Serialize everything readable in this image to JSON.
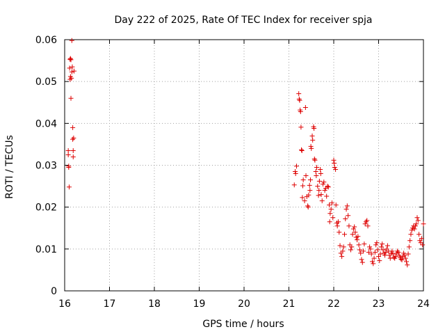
{
  "chart_data": {
    "type": "scatter",
    "title": "Day 222 of 2025, Rate Of TEC Index for receiver spja",
    "xlabel": "GPS time / hours",
    "ylabel": "ROTI / TECUs",
    "xlim": [
      16,
      24
    ],
    "ylim": [
      0,
      0.06
    ],
    "x_ticks": [
      "16",
      "17",
      "18",
      "19",
      "20",
      "21",
      "22",
      "23",
      "24"
    ],
    "y_ticks": [
      "0",
      "0.01",
      "0.02",
      "0.03",
      "0.04",
      "0.05",
      "0.06"
    ],
    "grid": true,
    "marker": "plus",
    "color": "#dd0000",
    "series": [
      {
        "name": "ROTI",
        "points": [
          [
            16.08,
            0.0335
          ],
          [
            16.08,
            0.0325
          ],
          [
            16.09,
            0.0298
          ],
          [
            16.09,
            0.0295
          ],
          [
            16.1,
            0.0248
          ],
          [
            16.11,
            0.0532
          ],
          [
            16.12,
            0.0553
          ],
          [
            16.12,
            0.0505
          ],
          [
            16.13,
            0.0555
          ],
          [
            16.13,
            0.0512
          ],
          [
            16.14,
            0.046
          ],
          [
            16.14,
            0.0552
          ],
          [
            16.15,
            0.0508
          ],
          [
            16.16,
            0.0523
          ],
          [
            16.16,
            0.0598
          ],
          [
            16.17,
            0.0535
          ],
          [
            16.18,
            0.039
          ],
          [
            16.18,
            0.0362
          ],
          [
            16.19,
            0.032
          ],
          [
            16.19,
            0.0335
          ],
          [
            16.2,
            0.0365
          ],
          [
            16.21,
            0.0525
          ],
          [
            21.12,
            0.0253
          ],
          [
            21.14,
            0.0285
          ],
          [
            21.15,
            0.028
          ],
          [
            21.17,
            0.0298
          ],
          [
            21.22,
            0.0471
          ],
          [
            21.23,
            0.0458
          ],
          [
            21.24,
            0.0455
          ],
          [
            21.25,
            0.0432
          ],
          [
            21.26,
            0.0428
          ],
          [
            21.27,
            0.0391
          ],
          [
            21.28,
            0.0337
          ],
          [
            21.29,
            0.0335
          ],
          [
            21.3,
            0.0223
          ],
          [
            21.31,
            0.0251
          ],
          [
            21.32,
            0.0265
          ],
          [
            21.35,
            0.0215
          ],
          [
            21.37,
            0.0438
          ],
          [
            21.38,
            0.0275
          ],
          [
            21.4,
            0.0225
          ],
          [
            21.42,
            0.0203
          ],
          [
            21.43,
            0.02
          ],
          [
            21.44,
            0.0229
          ],
          [
            21.46,
            0.0252
          ],
          [
            21.47,
            0.024
          ],
          [
            21.48,
            0.0265
          ],
          [
            21.49,
            0.0345
          ],
          [
            21.5,
            0.034
          ],
          [
            21.52,
            0.037
          ],
          [
            21.53,
            0.036
          ],
          [
            21.55,
            0.0392
          ],
          [
            21.56,
            0.0388
          ],
          [
            21.57,
            0.0315
          ],
          [
            21.58,
            0.0312
          ],
          [
            21.6,
            0.0285
          ],
          [
            21.61,
            0.0275
          ],
          [
            21.62,
            0.0295
          ],
          [
            21.64,
            0.025
          ],
          [
            21.66,
            0.0228
          ],
          [
            21.67,
            0.024
          ],
          [
            21.68,
            0.0262
          ],
          [
            21.7,
            0.029
          ],
          [
            21.71,
            0.028
          ],
          [
            21.72,
            0.023
          ],
          [
            21.74,
            0.0215
          ],
          [
            21.76,
            0.0255
          ],
          [
            21.78,
            0.026
          ],
          [
            21.8,
            0.024
          ],
          [
            21.82,
            0.0245
          ],
          [
            21.84,
            0.0226
          ],
          [
            21.86,
            0.025
          ],
          [
            21.88,
            0.0248
          ],
          [
            21.9,
            0.0205
          ],
          [
            21.91,
            0.0165
          ],
          [
            21.92,
            0.0185
          ],
          [
            21.94,
            0.0195
          ],
          [
            21.96,
            0.021
          ],
          [
            21.98,
            0.0175
          ],
          [
            22.0,
            0.0312
          ],
          [
            22.01,
            0.0305
          ],
          [
            22.02,
            0.0295
          ],
          [
            22.04,
            0.029
          ],
          [
            22.05,
            0.0205
          ],
          [
            22.07,
            0.0162
          ],
          [
            22.08,
            0.0155
          ],
          [
            22.1,
            0.0165
          ],
          [
            22.12,
            0.014
          ],
          [
            22.14,
            0.0108
          ],
          [
            22.16,
            0.009
          ],
          [
            22.18,
            0.0082
          ],
          [
            22.2,
            0.0095
          ],
          [
            22.22,
            0.0105
          ],
          [
            22.24,
            0.0135
          ],
          [
            22.26,
            0.0172
          ],
          [
            22.28,
            0.0195
          ],
          [
            22.3,
            0.0203
          ],
          [
            22.32,
            0.018
          ],
          [
            22.34,
            0.0155
          ],
          [
            22.36,
            0.011
          ],
          [
            22.38,
            0.0098
          ],
          [
            22.4,
            0.0105
          ],
          [
            22.42,
            0.0135
          ],
          [
            22.44,
            0.0148
          ],
          [
            22.46,
            0.0153
          ],
          [
            22.48,
            0.014
          ],
          [
            22.5,
            0.0128
          ],
          [
            22.52,
            0.0122
          ],
          [
            22.54,
            0.013
          ],
          [
            22.56,
            0.011
          ],
          [
            22.58,
            0.0098
          ],
          [
            22.6,
            0.009
          ],
          [
            22.62,
            0.0075
          ],
          [
            22.64,
            0.0068
          ],
          [
            22.66,
            0.0095
          ],
          [
            22.68,
            0.0112
          ],
          [
            22.7,
            0.016
          ],
          [
            22.72,
            0.0165
          ],
          [
            22.74,
            0.0168
          ],
          [
            22.76,
            0.0155
          ],
          [
            22.78,
            0.0092
          ],
          [
            22.8,
            0.0105
          ],
          [
            22.82,
            0.01
          ],
          [
            22.84,
            0.0088
          ],
          [
            22.86,
            0.007
          ],
          [
            22.88,
            0.0065
          ],
          [
            22.9,
            0.0078
          ],
          [
            22.92,
            0.0092
          ],
          [
            22.94,
            0.011
          ],
          [
            22.96,
            0.0115
          ],
          [
            22.98,
            0.0098
          ],
          [
            23.0,
            0.0082
          ],
          [
            23.02,
            0.0072
          ],
          [
            23.04,
            0.0088
          ],
          [
            23.06,
            0.0105
          ],
          [
            23.08,
            0.0112
          ],
          [
            23.1,
            0.0098
          ],
          [
            23.12,
            0.009
          ],
          [
            23.14,
            0.0085
          ],
          [
            23.16,
            0.0092
          ],
          [
            23.18,
            0.01
          ],
          [
            23.2,
            0.0108
          ],
          [
            23.22,
            0.0095
          ],
          [
            23.24,
            0.0085
          ],
          [
            23.26,
            0.0078
          ],
          [
            23.28,
            0.009
          ],
          [
            23.3,
            0.0095
          ],
          [
            23.32,
            0.0088
          ],
          [
            23.34,
            0.008
          ],
          [
            23.36,
            0.0078
          ],
          [
            23.38,
            0.0082
          ],
          [
            23.4,
            0.009
          ],
          [
            23.42,
            0.0095
          ],
          [
            23.44,
            0.0092
          ],
          [
            23.46,
            0.0085
          ],
          [
            23.48,
            0.008
          ],
          [
            23.5,
            0.0076
          ],
          [
            23.52,
            0.0074
          ],
          [
            23.54,
            0.0082
          ],
          [
            23.56,
            0.009
          ],
          [
            23.58,
            0.0085
          ],
          [
            23.6,
            0.0078
          ],
          [
            23.62,
            0.007
          ],
          [
            23.64,
            0.0062
          ],
          [
            23.66,
            0.0088
          ],
          [
            23.68,
            0.0105
          ],
          [
            23.7,
            0.012
          ],
          [
            23.72,
            0.0135
          ],
          [
            23.74,
            0.0145
          ],
          [
            23.76,
            0.015
          ],
          [
            23.78,
            0.0155
          ],
          [
            23.8,
            0.0148
          ],
          [
            23.82,
            0.0155
          ],
          [
            23.84,
            0.016
          ],
          [
            23.86,
            0.0175
          ],
          [
            23.88,
            0.0168
          ],
          [
            23.9,
            0.0135
          ],
          [
            23.92,
            0.012
          ],
          [
            23.94,
            0.0115
          ],
          [
            23.96,
            0.0125
          ],
          [
            23.98,
            0.011
          ],
          [
            24.0,
            0.016
          ]
        ]
      }
    ]
  }
}
